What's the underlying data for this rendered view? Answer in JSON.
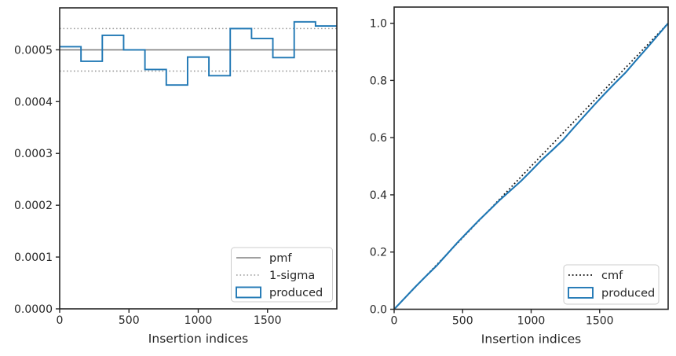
{
  "figure": {
    "background": "#ffffff",
    "colors": {
      "produced_blue": "#1f77b4",
      "pmf_gray": "#808080",
      "sigma_gray": "#9a9a9a",
      "cmf_black": "#111111",
      "axis_dark": "#262626",
      "legend_border": "#cccccc",
      "legend_bg": "#ffffff"
    }
  },
  "chart_data": [
    {
      "type": "step-histogram",
      "title": "",
      "xlabel": "Insertion indices",
      "ylabel": "",
      "xlim": [
        0,
        2000
      ],
      "ylim": [
        0,
        0.000581
      ],
      "xticks": [
        0,
        500,
        1000,
        1500
      ],
      "xtick_labels": [
        "0",
        "500",
        "1000",
        "1500"
      ],
      "yticks": [
        0.0,
        0.0001,
        0.0002,
        0.0003,
        0.0004,
        0.0005
      ],
      "ytick_labels": [
        "0.0000",
        "0.0001",
        "0.0002",
        "0.0003",
        "0.0004",
        "0.0005"
      ],
      "grid": false,
      "pmf_value": 0.0005,
      "sigma_upper": 0.000541,
      "sigma_lower": 0.000459,
      "bins": {
        "start": 0,
        "end": 2000,
        "count": 13
      },
      "bin_densities": [
        0.000506,
        0.000478,
        0.000528,
        0.0005,
        0.000462,
        0.000432,
        0.000486,
        0.00045,
        0.000541,
        0.000522,
        0.000485,
        0.000554,
        0.000546
      ],
      "legend": {
        "position": "lower right",
        "entries": [
          {
            "label": "pmf",
            "swatch": "gray-solid-line"
          },
          {
            "label": "1-sigma",
            "swatch": "gray-dotted-line"
          },
          {
            "label": "produced",
            "swatch": "blue-step-outline"
          }
        ]
      }
    },
    {
      "type": "line",
      "title": "",
      "xlabel": "Insertion indices",
      "ylabel": "",
      "xlim": [
        0,
        2000
      ],
      "ylim": [
        0,
        1.0566
      ],
      "xticks": [
        0,
        500,
        1000,
        1500
      ],
      "xtick_labels": [
        "0",
        "500",
        "1000",
        "1500"
      ],
      "yticks": [
        0.0,
        0.2,
        0.4,
        0.6,
        0.8,
        1.0
      ],
      "ytick_labels": [
        "0.0",
        "0.2",
        "0.4",
        "0.6",
        "0.8",
        "1.0"
      ],
      "grid": false,
      "series": [
        {
          "name": "cmf",
          "style": "dotted-black",
          "x": [
            0,
            2000
          ],
          "y": [
            0,
            1.0
          ]
        },
        {
          "name": "produced",
          "style": "solid-blue",
          "x": [
            0,
            77,
            154,
            231,
            308,
            385,
            462,
            538,
            615,
            692,
            769,
            846,
            923,
            1000,
            1077,
            1154,
            1231,
            1308,
            1385,
            1462,
            1538,
            1615,
            1692,
            1769,
            1846,
            1923,
            2000
          ],
          "y": [
            0,
            0.039,
            0.078,
            0.115,
            0.151,
            0.192,
            0.233,
            0.271,
            0.309,
            0.345,
            0.381,
            0.414,
            0.447,
            0.484,
            0.522,
            0.556,
            0.591,
            0.633,
            0.674,
            0.715,
            0.754,
            0.792,
            0.829,
            0.872,
            0.914,
            0.957,
            1.0
          ]
        }
      ],
      "legend": {
        "position": "lower right",
        "entries": [
          {
            "label": "cmf",
            "swatch": "black-dotted-line"
          },
          {
            "label": "produced",
            "swatch": "blue-step-outline"
          }
        ]
      }
    }
  ]
}
